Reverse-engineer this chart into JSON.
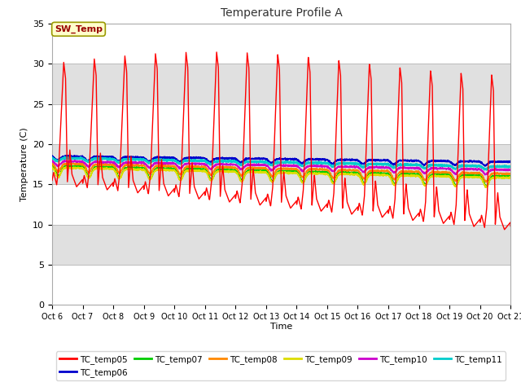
{
  "title": "Temperature Profile A",
  "xlabel": "Time",
  "ylabel": "Temperature (C)",
  "ylim": [
    0,
    35
  ],
  "yticks": [
    0,
    5,
    10,
    15,
    20,
    25,
    30,
    35
  ],
  "sw_temp_annotation": "SW_Temp",
  "legend_entries": [
    {
      "label": "TC_temp05",
      "color": "#FF0000"
    },
    {
      "label": "TC_temp06",
      "color": "#0000CC"
    },
    {
      "label": "TC_temp07",
      "color": "#00CC00"
    },
    {
      "label": "TC_temp08",
      "color": "#FF8800"
    },
    {
      "label": "TC_temp09",
      "color": "#DDDD00"
    },
    {
      "label": "TC_temp10",
      "color": "#CC00CC"
    },
    {
      "label": "TC_temp11",
      "color": "#00CCCC"
    }
  ],
  "bg_light": "#FFFFFF",
  "bg_dark": "#E0E0E0",
  "plot_bg_color": "#FFFFFF",
  "grid_color": "#BBBBBB",
  "band_ranges": [
    [
      0,
      5
    ],
    [
      5,
      10
    ],
    [
      10,
      15
    ],
    [
      15,
      20
    ],
    [
      20,
      25
    ],
    [
      25,
      30
    ],
    [
      30,
      35
    ]
  ],
  "band_colors": [
    "#FFFFFF",
    "#E0E0E0",
    "#FFFFFF",
    "#E0E0E0",
    "#FFFFFF",
    "#E0E0E0",
    "#FFFFFF"
  ]
}
